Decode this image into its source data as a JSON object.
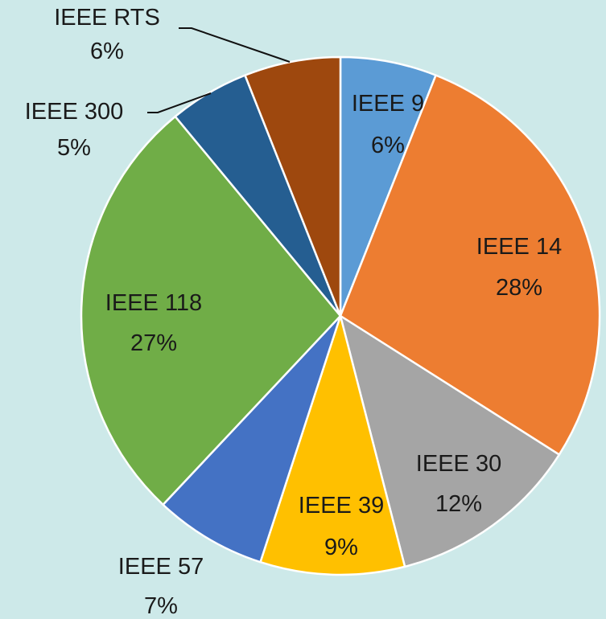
{
  "chart_data": {
    "type": "pie",
    "title": "",
    "start_angle_deg": 0,
    "direction": "clockwise",
    "slices": [
      {
        "label": "IEEE 9",
        "value": 6,
        "value_label": "6%",
        "color": "#5b9bd5"
      },
      {
        "label": "IEEE 14",
        "value": 28,
        "value_label": "28%",
        "color": "#ed7d31"
      },
      {
        "label": "IEEE 30",
        "value": 12,
        "value_label": "12%",
        "color": "#a5a5a5"
      },
      {
        "label": "IEEE 39",
        "value": 9,
        "value_label": "9%",
        "color": "#ffc000"
      },
      {
        "label": "IEEE 57",
        "value": 7,
        "value_label": "7%",
        "color": "#4472c4"
      },
      {
        "label": "IEEE 118",
        "value": 27,
        "value_label": "27%",
        "color": "#70ad47"
      },
      {
        "label": "IEEE 300",
        "value": 5,
        "value_label": "5%",
        "color": "#255e91"
      },
      {
        "label": "IEEE RTS",
        "value": 6,
        "value_label": "6%",
        "color": "#9e480e"
      }
    ],
    "background_color": "#cde9e9"
  }
}
